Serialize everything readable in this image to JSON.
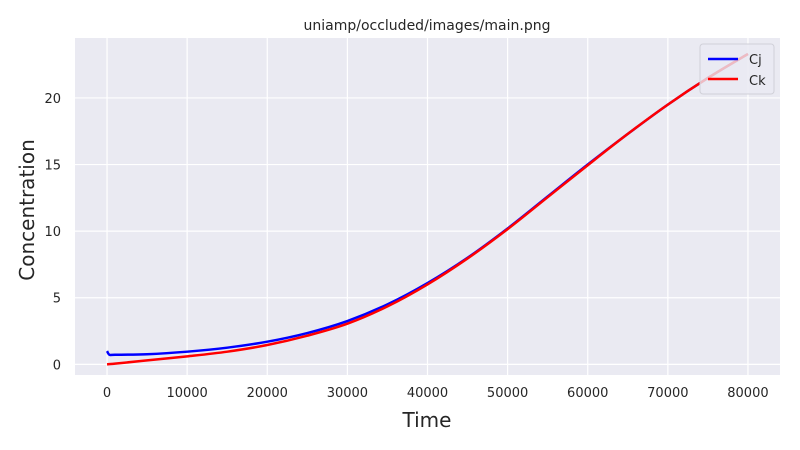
{
  "chart_data": {
    "type": "line",
    "title": "uniamp/occluded/images/main.png",
    "xlabel": "Time",
    "ylabel": "Concentration",
    "xlim": [
      -4000,
      84000
    ],
    "ylim": [
      -0.8,
      24.5
    ],
    "xticks": [
      0,
      10000,
      20000,
      30000,
      40000,
      50000,
      60000,
      70000,
      80000
    ],
    "yticks": [
      0,
      5,
      10,
      15,
      20
    ],
    "grid": true,
    "legend_position": "top-right",
    "series": [
      {
        "name": "Cj",
        "color": "#0000ff",
        "x": [
          0,
          300,
          1000,
          5000,
          10000,
          15000,
          20000,
          25000,
          30000,
          35000,
          40000,
          45000,
          50000,
          55000,
          60000,
          65000,
          70000,
          75000,
          80000
        ],
        "y": [
          1.0,
          0.72,
          0.72,
          0.76,
          0.95,
          1.25,
          1.7,
          2.35,
          3.25,
          4.5,
          6.1,
          8.0,
          10.2,
          12.6,
          15.0,
          17.3,
          19.5,
          21.5,
          23.3
        ]
      },
      {
        "name": "Ck",
        "color": "#ff0000",
        "x": [
          0,
          1000,
          5000,
          10000,
          15000,
          20000,
          25000,
          30000,
          35000,
          40000,
          45000,
          50000,
          55000,
          60000,
          65000,
          70000,
          75000,
          80000
        ],
        "y": [
          0.0,
          0.05,
          0.3,
          0.6,
          0.95,
          1.45,
          2.15,
          3.05,
          4.35,
          6.0,
          7.95,
          10.15,
          12.55,
          14.95,
          17.3,
          19.5,
          21.5,
          23.3
        ]
      }
    ]
  }
}
